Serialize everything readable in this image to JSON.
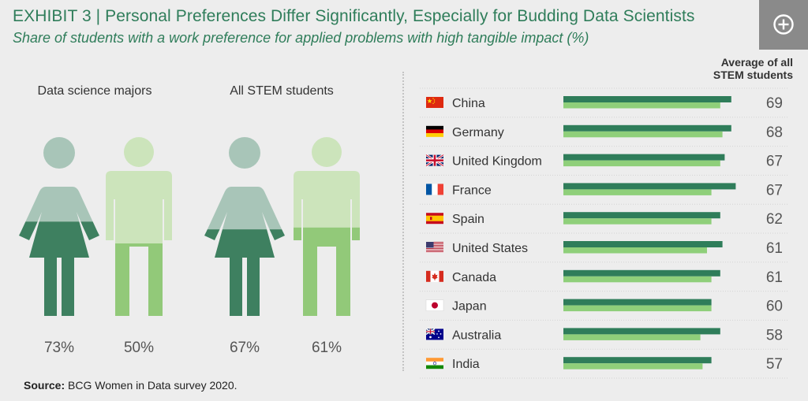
{
  "header": {
    "title": "EXHIBIT 3 | Personal Preferences Differ Significantly, Especially for Budding Data Scientists",
    "subtitle": "Share of students with a work preference for applied problems with high tangible impact (%)"
  },
  "expand_button": {
    "icon": "plus-circle-icon"
  },
  "colors": {
    "female_dark": "#3e8060",
    "female_light": "#a8c5b8",
    "male_dark": "#92c979",
    "male_light": "#cce4bb",
    "bar_dark": "#2f7d5a",
    "bar_light": "#8fcf7a",
    "accent_text": "#2f7d5a"
  },
  "left_panel": {
    "groups": [
      {
        "label": "Data science majors",
        "figures": [
          {
            "gender": "female",
            "value": 73,
            "display": "73%"
          },
          {
            "gender": "male",
            "value": 50,
            "display": "50%"
          }
        ]
      },
      {
        "label": "All STEM students",
        "figures": [
          {
            "gender": "female",
            "value": 67,
            "display": "67%"
          },
          {
            "gender": "male",
            "value": 61,
            "display": "61%"
          }
        ]
      }
    ]
  },
  "chart_data": {
    "type": "bar",
    "orientation": "horizontal",
    "categories": [
      "China",
      "Germany",
      "United Kingdom",
      "France",
      "Spain",
      "United States",
      "Canada",
      "Japan",
      "Australia",
      "India"
    ],
    "value_column_header": "Average of all STEM students",
    "values": [
      69,
      68,
      67,
      67,
      62,
      61,
      61,
      60,
      58,
      57
    ],
    "display_values": [
      "69",
      "68",
      "67",
      "67",
      "62",
      "61",
      "61",
      "60",
      "58",
      "57"
    ],
    "series": [
      {
        "values": [
          76,
          76,
          73,
          78,
          71,
          72,
          71,
          67,
          71,
          67
        ]
      },
      {
        "values": [
          71,
          72,
          71,
          67,
          67,
          65,
          67,
          67,
          62,
          63
        ]
      }
    ],
    "xlim": [
      0,
      100
    ],
    "flags": [
      "china-flag-icon",
      "germany-flag-icon",
      "uk-flag-icon",
      "france-flag-icon",
      "spain-flag-icon",
      "usa-flag-icon",
      "canada-flag-icon",
      "japan-flag-icon",
      "australia-flag-icon",
      "india-flag-icon"
    ]
  },
  "source": {
    "label": "Source:",
    "text": "BCG Women in Data survey 2020."
  }
}
